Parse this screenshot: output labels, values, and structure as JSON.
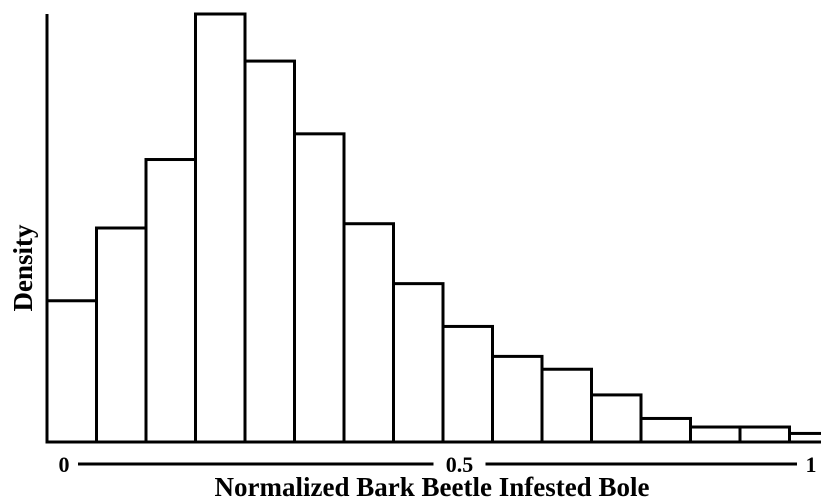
{
  "chart_data": {
    "type": "bar",
    "title": "",
    "xlabel": "Normalized Bark Beetle Infested Bole",
    "ylabel": "Density",
    "xlim": [
      0,
      1
    ],
    "ylim": [
      0,
      1
    ],
    "y_tick_labels_shown": false,
    "bins": [
      {
        "x0": 0.0,
        "x1": 0.06,
        "value": 0.33
      },
      {
        "x0": 0.06,
        "x1": 0.12,
        "value": 0.5
      },
      {
        "x0": 0.12,
        "x1": 0.18,
        "value": 0.66
      },
      {
        "x0": 0.18,
        "x1": 0.24,
        "value": 1.0
      },
      {
        "x0": 0.24,
        "x1": 0.3,
        "value": 0.89
      },
      {
        "x0": 0.3,
        "x1": 0.36,
        "value": 0.72
      },
      {
        "x0": 0.36,
        "x1": 0.42,
        "value": 0.51
      },
      {
        "x0": 0.42,
        "x1": 0.48,
        "value": 0.37
      },
      {
        "x0": 0.48,
        "x1": 0.54,
        "value": 0.27
      },
      {
        "x0": 0.54,
        "x1": 0.6,
        "value": 0.2
      },
      {
        "x0": 0.6,
        "x1": 0.66,
        "value": 0.17
      },
      {
        "x0": 0.66,
        "x1": 0.72,
        "value": 0.11
      },
      {
        "x0": 0.72,
        "x1": 0.78,
        "value": 0.055
      },
      {
        "x0": 0.78,
        "x1": 0.84,
        "value": 0.035
      },
      {
        "x0": 0.84,
        "x1": 0.9,
        "value": 0.035
      },
      {
        "x0": 0.9,
        "x1": 0.96,
        "value": 0.02
      }
    ],
    "x_ticks": [
      {
        "value": 0,
        "label": "0"
      },
      {
        "value": 0.5,
        "label": "0.5"
      },
      {
        "value": 1,
        "label": "1"
      }
    ],
    "grid": false
  }
}
